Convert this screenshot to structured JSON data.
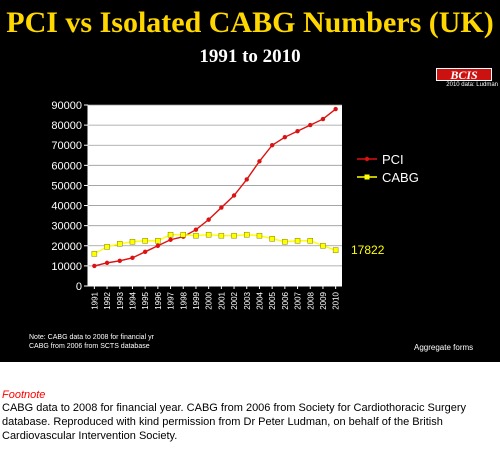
{
  "slide": {
    "title": "PCI vs Isolated CABG Numbers (UK)",
    "subtitle": "1991 to 2010",
    "logo_text": "BCIS",
    "logo_caption": "2010 data: Ludman",
    "note_line1": "Note: CABG data to 2008 for financial yr",
    "note_line2": "CABG from 2006 from SCTS database",
    "aggregate": "Aggregate forms"
  },
  "footnote": {
    "title": "Footnote",
    "text": "CABG data to 2008 for financial year.  CABG from 2006 from Society for Cardiothoracic Surgery database.  Reproduced with kind permission from Dr Peter Ludman, on behalf of the British Cardiovascular Intervention Society."
  },
  "chart_data": {
    "type": "line",
    "x": [
      "1991",
      "1992",
      "1993",
      "1994",
      "1995",
      "1996",
      "1997",
      "1998",
      "1999",
      "2000",
      "2001",
      "2002",
      "2003",
      "2004",
      "2005",
      "2006",
      "2007",
      "2008",
      "2009",
      "2010"
    ],
    "series": [
      {
        "name": "PCI",
        "color": "#dd1111",
        "marker": "circle",
        "values": [
          10000,
          11500,
          12500,
          14000,
          17000,
          20000,
          23000,
          24500,
          28000,
          33000,
          39000,
          45000,
          53000,
          62000,
          70000,
          74000,
          77000,
          80000,
          83000,
          88000
        ]
      },
      {
        "name": "CABG",
        "color": "#ffff00",
        "marker": "square",
        "values": [
          16000,
          19500,
          21000,
          22000,
          22500,
          22500,
          25500,
          25500,
          25000,
          25500,
          25000,
          25000,
          25500,
          25000,
          23500,
          22000,
          22500,
          22500,
          20000,
          17822
        ]
      }
    ],
    "ylim": [
      0,
      90000
    ],
    "yticks": [
      "0",
      "10000",
      "20000",
      "30000",
      "40000",
      "50000",
      "60000",
      "70000",
      "80000",
      "90000"
    ],
    "annotation": "17822",
    "grid": true,
    "legend": "right"
  }
}
